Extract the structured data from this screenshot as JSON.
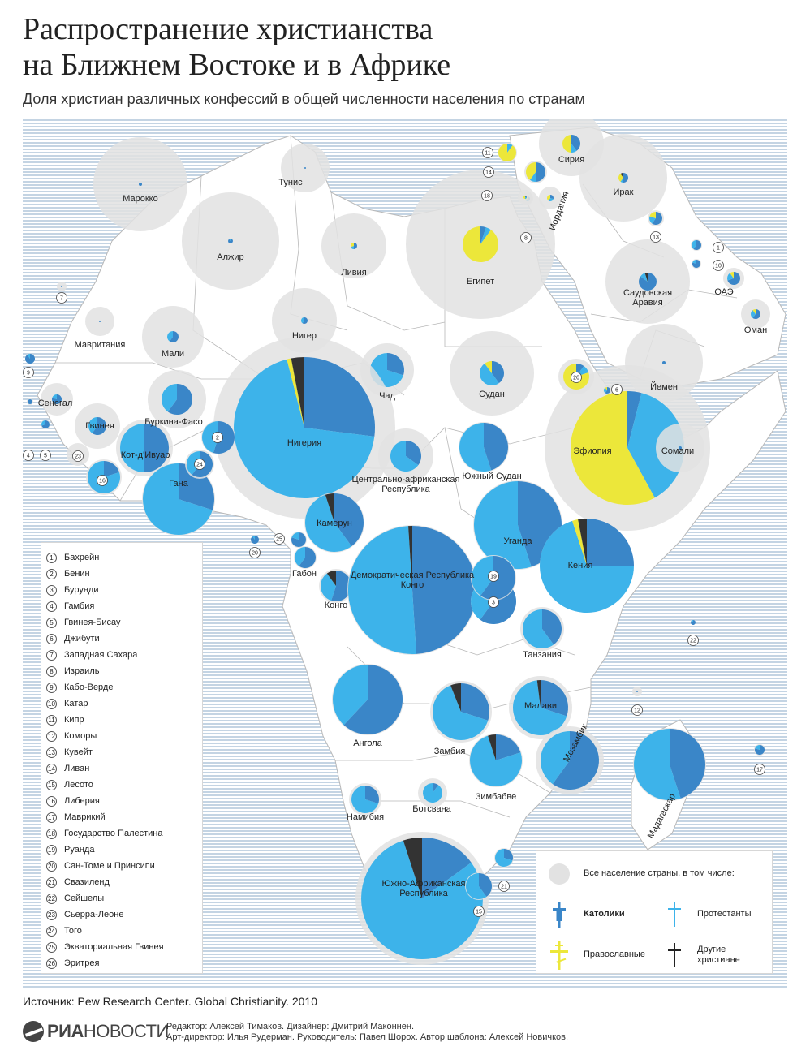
{
  "header": {
    "title_line1": "Распространение христианства",
    "title_line2": "на Ближнем Востоке и в Африке",
    "subtitle": "Доля христиан различных конфессий в общей численности населения по странам"
  },
  "colors": {
    "sea_stripe": "#c4d4e3",
    "land": "#ffffff",
    "population_circle": "#e2e2e2",
    "catholic": "#3a86c8",
    "protestant": "#3db3ea",
    "orthodox": "#ece73a",
    "other": "#333333",
    "border": "#b8b8b8"
  },
  "countries": [
    {
      "name": "Марокко"
    },
    {
      "name": "Алжир"
    },
    {
      "name": "Тунис"
    },
    {
      "name": "Ливия"
    },
    {
      "name": "Египет"
    },
    {
      "name": "Сирия"
    },
    {
      "name": "Ирак"
    },
    {
      "name": "Иордания"
    },
    {
      "name": "Саудовская Аравия"
    },
    {
      "name": "ОАЭ"
    },
    {
      "name": "Оман"
    },
    {
      "name": "Йемен"
    },
    {
      "name": "Мавритания"
    },
    {
      "name": "Мали"
    },
    {
      "name": "Нигер"
    },
    {
      "name": "Чад"
    },
    {
      "name": "Судан"
    },
    {
      "name": "Эфиопия"
    },
    {
      "name": "Сомали"
    },
    {
      "name": "Сенегал"
    },
    {
      "name": "Гвинея"
    },
    {
      "name": "Буркина-Фасо"
    },
    {
      "name": "Кот-д'Ивуар"
    },
    {
      "name": "Гана"
    },
    {
      "name": "Нигерия"
    },
    {
      "name": "Камерун"
    },
    {
      "name": "Центрально-африканская Республика"
    },
    {
      "name": "Южный Судан"
    },
    {
      "name": "Уганда"
    },
    {
      "name": "Кения"
    },
    {
      "name": "Габон"
    },
    {
      "name": "Конго"
    },
    {
      "name": "Демократическая Республика Конго"
    },
    {
      "name": "Танзания"
    },
    {
      "name": "Ангола"
    },
    {
      "name": "Замбия"
    },
    {
      "name": "Малави"
    },
    {
      "name": "Мозамбик"
    },
    {
      "name": "Зимбабве"
    },
    {
      "name": "Мадагаскар"
    },
    {
      "name": "Намибия"
    },
    {
      "name": "Ботсвана"
    },
    {
      "name": "Южно-Африканская Республика"
    }
  ],
  "numbered_key": [
    {
      "num": "1",
      "name": "Бахрейн"
    },
    {
      "num": "2",
      "name": "Бенин"
    },
    {
      "num": "3",
      "name": "Бурунди"
    },
    {
      "num": "4",
      "name": "Гамбия"
    },
    {
      "num": "5",
      "name": "Гвинея-Бисау"
    },
    {
      "num": "6",
      "name": "Джибути"
    },
    {
      "num": "7",
      "name": "Западная Сахара"
    },
    {
      "num": "8",
      "name": "Израиль"
    },
    {
      "num": "9",
      "name": "Кабо-Верде"
    },
    {
      "num": "10",
      "name": "Катар"
    },
    {
      "num": "11",
      "name": "Кипр"
    },
    {
      "num": "12",
      "name": "Коморы"
    },
    {
      "num": "13",
      "name": "Кувейт"
    },
    {
      "num": "14",
      "name": "Ливан"
    },
    {
      "num": "15",
      "name": "Лесото"
    },
    {
      "num": "16",
      "name": "Либерия"
    },
    {
      "num": "17",
      "name": "Маврикий"
    },
    {
      "num": "18",
      "name": "Государство Палестина"
    },
    {
      "num": "19",
      "name": "Руанда"
    },
    {
      "num": "20",
      "name": "Сан-Томе и Принсипи"
    },
    {
      "num": "21",
      "name": "Свазиленд"
    },
    {
      "num": "22",
      "name": "Сейшелы"
    },
    {
      "num": "23",
      "name": "Сьерра-Леоне"
    },
    {
      "num": "24",
      "name": "Того"
    },
    {
      "num": "25",
      "name": "Экваториальная Гвинея"
    },
    {
      "num": "26",
      "name": "Эритрея"
    }
  ],
  "legend": {
    "total": "Все население страны, в том числе:",
    "catholic": "Католики",
    "protestant": "Протестанты",
    "orthodox": "Православные",
    "other_line1": "Другие",
    "other_line2": "христиане"
  },
  "footer": {
    "source": "Источник: Pew Research Center. Global Christianity. 2010",
    "brand_part1": "РИА",
    "brand_part2": "НОВОСТИ",
    "credits_line1": "Редактор: Алексей Тимаков. Дизайнер: Дмитрий Маконнен.",
    "credits_line2": "Арт-директор: Илья Рудерман. Руководитель: Павел Шорох. Автор шаблона: Алексей Новичков."
  }
}
